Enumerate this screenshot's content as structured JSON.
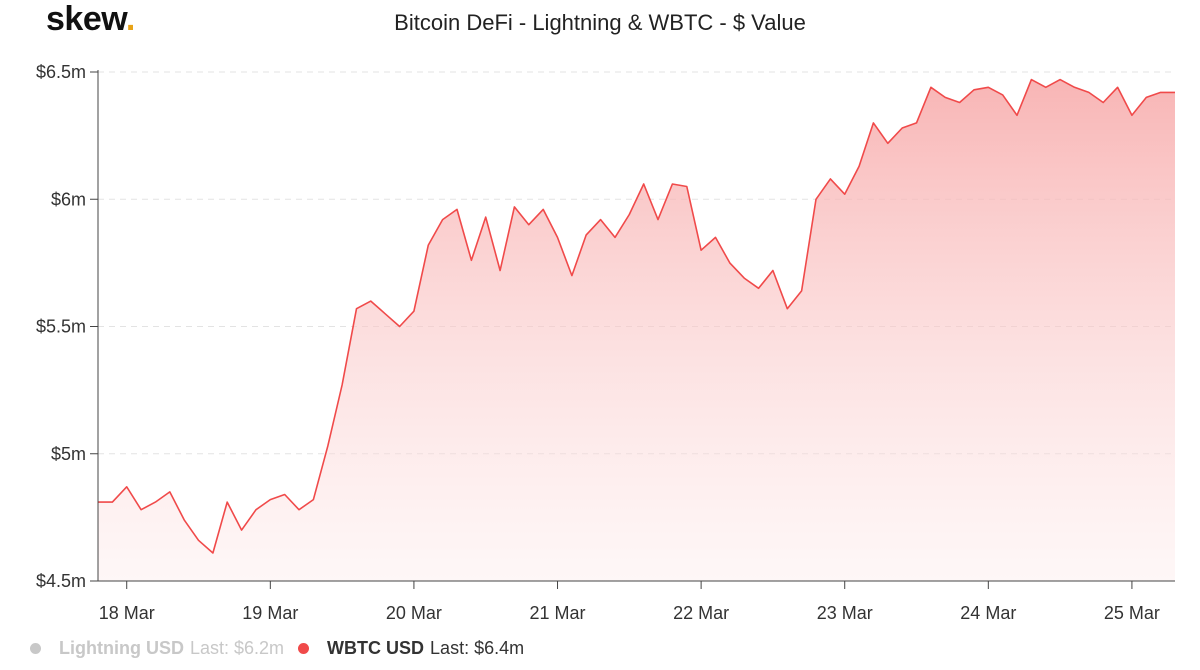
{
  "brand": {
    "name": "skew",
    "dot": ".",
    "dot_color": "#e8a317"
  },
  "chart_data": {
    "type": "area",
    "title": "Bitcoin DeFi - Lightning & WBTC - $ Value",
    "xlabel": "",
    "ylabel": "",
    "y_ticks": [
      "$4.5m",
      "$5m",
      "$5.5m",
      "$6m",
      "$6.5m"
    ],
    "y_tick_values": [
      4.5,
      5.0,
      5.5,
      6.0,
      6.5
    ],
    "ylim": [
      4.5,
      6.5
    ],
    "x_ticks": [
      "18 Mar",
      "19 Mar",
      "20 Mar",
      "21 Mar",
      "22 Mar",
      "23 Mar",
      "24 Mar",
      "25 Mar"
    ],
    "xlim": [
      -0.2,
      7.3
    ],
    "grid": "horizontal dashed",
    "legend_position": "bottom-left",
    "series": [
      {
        "name": "Lightning USD",
        "last": "Last: $6.2m",
        "visible": false,
        "color": "#c8c8c8",
        "x": [],
        "values": []
      },
      {
        "name": "WBTC USD",
        "last": "Last: $6.4m",
        "visible": true,
        "color": "#f04a4a",
        "x": [
          -0.2,
          -0.1,
          0.0,
          0.1,
          0.2,
          0.3,
          0.4,
          0.5,
          0.6,
          0.7,
          0.8,
          0.9,
          1.0,
          1.1,
          1.2,
          1.3,
          1.4,
          1.5,
          1.6,
          1.7,
          1.8,
          1.9,
          2.0,
          2.1,
          2.2,
          2.3,
          2.4,
          2.5,
          2.6,
          2.7,
          2.8,
          2.9,
          3.0,
          3.1,
          3.2,
          3.3,
          3.4,
          3.5,
          3.6,
          3.7,
          3.8,
          3.9,
          4.0,
          4.1,
          4.2,
          4.3,
          4.4,
          4.5,
          4.6,
          4.7,
          4.8,
          4.9,
          5.0,
          5.1,
          5.2,
          5.3,
          5.4,
          5.5,
          5.6,
          5.7,
          5.8,
          5.9,
          6.0,
          6.1,
          6.2,
          6.3,
          6.4,
          6.5,
          6.6,
          6.7,
          6.8,
          6.9,
          7.0,
          7.1,
          7.2,
          7.3
        ],
        "values": [
          4.81,
          4.81,
          4.87,
          4.78,
          4.81,
          4.85,
          4.74,
          4.66,
          4.61,
          4.81,
          4.7,
          4.78,
          4.82,
          4.84,
          4.78,
          4.82,
          5.03,
          5.27,
          5.57,
          5.6,
          5.55,
          5.5,
          5.56,
          5.82,
          5.92,
          5.96,
          5.76,
          5.93,
          5.72,
          5.97,
          5.9,
          5.96,
          5.85,
          5.7,
          5.86,
          5.92,
          5.85,
          5.94,
          6.06,
          5.92,
          6.06,
          6.05,
          5.8,
          5.85,
          5.75,
          5.69,
          5.65,
          5.72,
          5.57,
          5.64,
          6.0,
          6.08,
          6.02,
          6.13,
          6.3,
          6.22,
          6.28,
          6.3,
          6.44,
          6.4,
          6.38,
          6.43,
          6.44,
          6.41,
          6.33,
          6.47,
          6.44,
          6.47,
          6.44,
          6.42,
          6.38,
          6.44,
          6.33,
          6.4,
          6.42,
          6.42
        ]
      }
    ]
  }
}
